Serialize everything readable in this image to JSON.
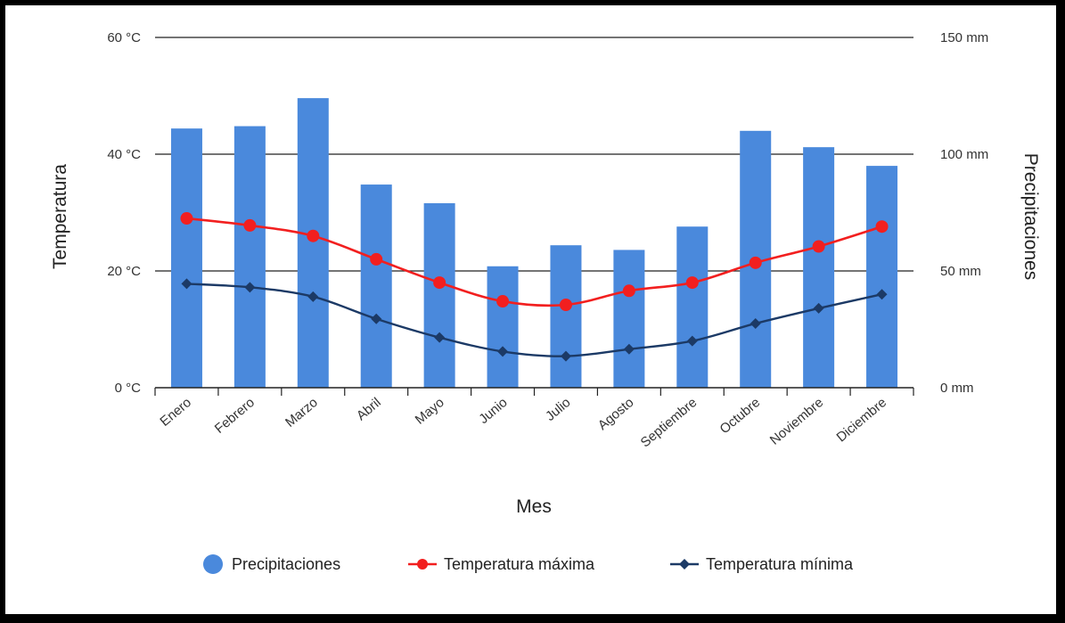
{
  "chart_data": {
    "type": "bar+line",
    "categories": [
      "Enero",
      "Febrero",
      "Marzo",
      "Abril",
      "Mayo",
      "Junio",
      "Julio",
      "Agosto",
      "Septiembre",
      "Octubre",
      "Noviembre",
      "Diciembre"
    ],
    "series": [
      {
        "name": "Precipitaciones",
        "type": "bar",
        "axis": "right",
        "unit": "mm",
        "color": "#4a89dc",
        "values": [
          111,
          112,
          124,
          87,
          79,
          52,
          61,
          59,
          69,
          110,
          103,
          95
        ]
      },
      {
        "name": "Temperatura máxima",
        "type": "line",
        "axis": "left",
        "unit": "°C",
        "color": "#f21f1f",
        "values": [
          29,
          27.8,
          26,
          22,
          18,
          14.8,
          14.2,
          16.6,
          18,
          21.4,
          24.2,
          27.6
        ]
      },
      {
        "name": "Temperatura mínima",
        "type": "line",
        "axis": "left",
        "unit": "°C",
        "color": "#1c3a66",
        "values": [
          17.8,
          17.2,
          15.6,
          11.8,
          8.6,
          6.2,
          5.4,
          6.6,
          8,
          11,
          13.6,
          16
        ]
      }
    ],
    "xlabel": "Mes",
    "ylabel_left": "Temperatura",
    "ylabel_right": "Precipitaciones",
    "ylim_left": [
      0,
      60
    ],
    "ylim_right": [
      0,
      150
    ],
    "left_ticks": [
      "0 °C",
      "20 °C",
      "40 °C",
      "60 °C"
    ],
    "right_ticks": [
      "0 mm",
      "50 mm",
      "100 mm",
      "150 mm"
    ],
    "grid": true,
    "legend_position": "bottom"
  }
}
